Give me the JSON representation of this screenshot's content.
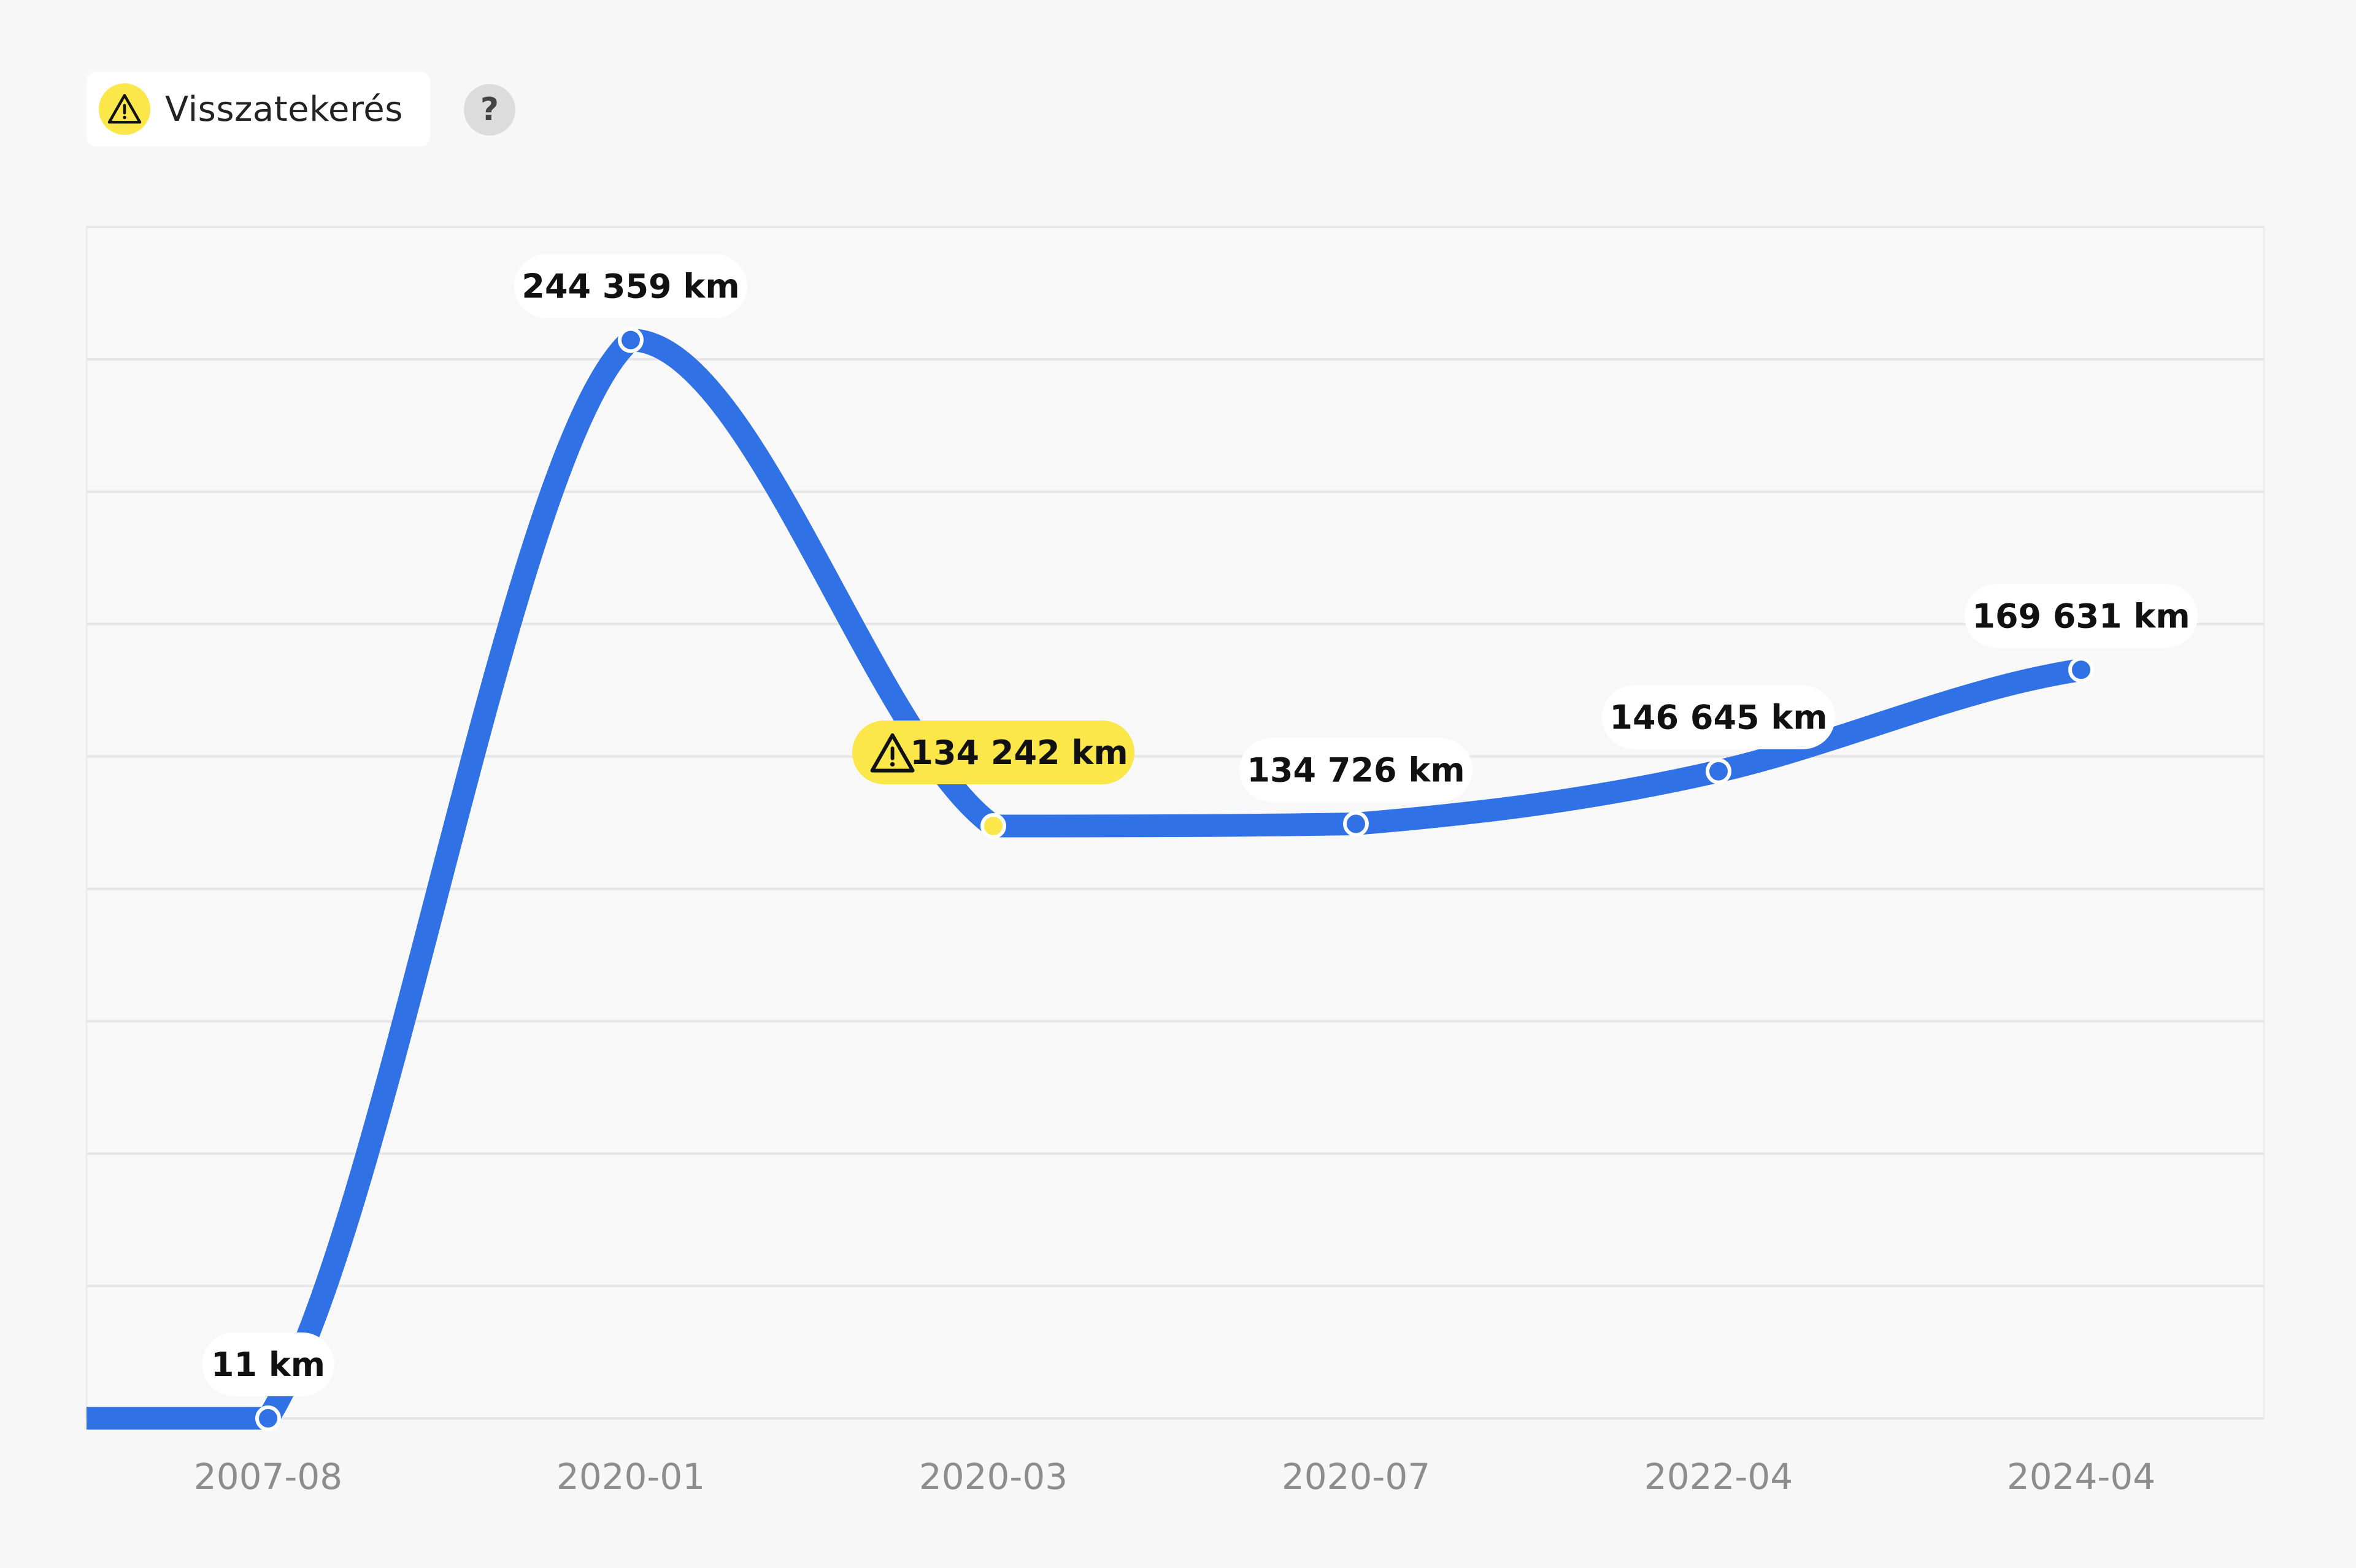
{
  "legend": {
    "label": "Visszatekerés",
    "icon": "warning-triangle-icon",
    "icon_bg": "#fbe74a"
  },
  "help": {
    "label": "?"
  },
  "colors": {
    "line": "#3072e6",
    "warning_bg": "#fbe74a",
    "grid": "#e6e6e6",
    "plot_bg": "#f8f8f8"
  },
  "chart_data": {
    "type": "line",
    "categories": [
      "2007-08",
      "2020-01",
      "2020-03",
      "2020-07",
      "2022-04",
      "2024-04"
    ],
    "values": [
      11,
      244359,
      134242,
      134726,
      146645,
      169631
    ],
    "labels": [
      "11 km",
      "244 359 km",
      "134 242 km",
      "134 726 km",
      "146 645 km",
      "169 631 km"
    ],
    "warning_points": [
      2
    ],
    "ylim": [
      0,
      270000
    ],
    "grid": true,
    "grid_lines": 9,
    "xlabel": "",
    "ylabel": ""
  }
}
